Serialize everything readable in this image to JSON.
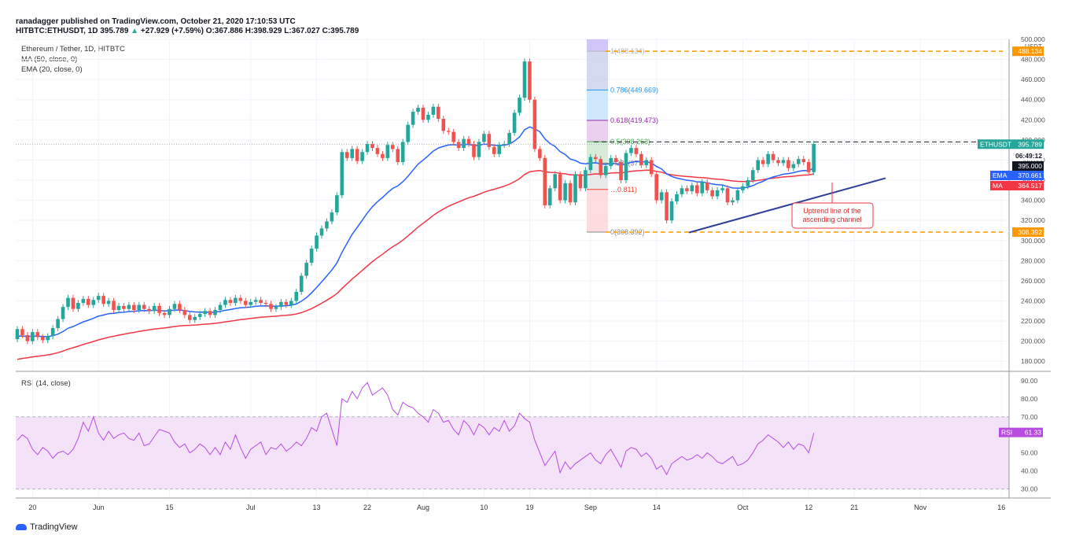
{
  "header": {
    "author_line": "ranadagger published on TradingView.com, October 21, 2020 17:10:53 UTC",
    "symbol": "HITBTC:ETHUSDT, 1D",
    "last": "395.789",
    "change": "+27.929 (+7.59%)",
    "O": "O:367.886",
    "H": "H:398.929",
    "L": "L:367.027",
    "C": "C:395.789"
  },
  "legend": {
    "title": "Ethereum / Tether, 1D, HITBTC",
    "ma": "MA (50, close, 0)",
    "ema": "EMA (20, close, 0)",
    "rsi": "RSI (14, close)"
  },
  "watermark": "TradingView",
  "colors": {
    "up": "#26a69a",
    "down": "#ef5350",
    "ema": "#2962ff",
    "ma": "#f23645",
    "rsi_line": "#b84ce0",
    "rsi_band": "#f3e2f8",
    "trend": "#2e3f9a",
    "dash_orange": "#ff9800"
  },
  "chart_data": {
    "type": "candlestick",
    "price_axis": {
      "unit": "USDT",
      "ylim": [
        170,
        500
      ],
      "ticks": [
        "180.000",
        "200.000",
        "220.000",
        "240.000",
        "260.000",
        "280.000",
        "300.000",
        "320.000",
        "340.000",
        "360.000",
        "380.000",
        "400.000",
        "420.000",
        "440.000",
        "460.000",
        "480.000",
        "500.000"
      ]
    },
    "x_ticks": [
      "20",
      "Jun",
      "15",
      "Jul",
      "13",
      "22",
      "Aug",
      "10",
      "19",
      "Sep",
      "14",
      "Oct",
      "12",
      "21",
      "Nov",
      "16"
    ],
    "fib": [
      {
        "label": "1(488.134)",
        "value": 488.134
      },
      {
        "label": "0.786(449.669)",
        "value": 449.669
      },
      {
        "label": "0.618(419.473)",
        "value": 419.473
      },
      {
        "label": "0.5(398.263)",
        "value": 398.263
      },
      {
        "label": "0.382(377…",
        "value": 377.0
      },
      {
        "label": "…0.811)",
        "value": 350.8
      },
      {
        "label": "0(308.392)",
        "value": 308.392
      }
    ],
    "price_labels": [
      {
        "label": "488.134",
        "value": 488.134
      },
      {
        "label": "ETHUSDT",
        "value": 395.789,
        "text": "395.789"
      },
      {
        "label": "06:49:12",
        "value": 385
      },
      {
        "label": "395.000",
        "value": 395.0
      },
      {
        "label": "EMA",
        "value": 370.661,
        "text": "370.661"
      },
      {
        "label": "MA",
        "value": 364.517,
        "text": "364.517"
      },
      {
        "label": "308.392",
        "value": 308.392
      }
    ],
    "annotation": "Uptrend line of the ascending channel",
    "candles": [
      [
        202,
        212
      ],
      [
        212,
        206
      ],
      [
        206,
        200
      ],
      [
        200,
        209
      ],
      [
        209,
        204
      ],
      [
        204,
        201
      ],
      [
        201,
        205
      ],
      [
        205,
        213
      ],
      [
        213,
        222
      ],
      [
        222,
        234
      ],
      [
        234,
        243
      ],
      [
        243,
        232
      ],
      [
        232,
        238
      ],
      [
        238,
        242
      ],
      [
        242,
        236
      ],
      [
        236,
        241
      ],
      [
        241,
        245
      ],
      [
        245,
        237
      ],
      [
        237,
        240
      ],
      [
        240,
        231
      ],
      [
        231,
        235
      ],
      [
        235,
        232
      ],
      [
        232,
        236
      ],
      [
        236,
        231
      ],
      [
        231,
        236
      ],
      [
        236,
        232
      ],
      [
        232,
        230
      ],
      [
        230,
        235
      ],
      [
        235,
        228
      ],
      [
        228,
        226
      ],
      [
        226,
        232
      ],
      [
        232,
        237
      ],
      [
        237,
        231
      ],
      [
        231,
        226
      ],
      [
        226,
        221
      ],
      [
        221,
        224
      ],
      [
        224,
        227
      ],
      [
        227,
        230
      ],
      [
        230,
        226
      ],
      [
        226,
        231
      ],
      [
        231,
        236
      ],
      [
        236,
        241
      ],
      [
        241,
        238
      ],
      [
        238,
        243
      ],
      [
        243,
        240
      ],
      [
        240,
        236
      ],
      [
        236,
        239
      ],
      [
        239,
        241
      ],
      [
        241,
        238
      ],
      [
        238,
        237
      ],
      [
        237,
        232
      ],
      [
        232,
        234
      ],
      [
        234,
        239
      ],
      [
        239,
        236
      ],
      [
        236,
        240
      ],
      [
        240,
        249
      ],
      [
        249,
        265
      ],
      [
        265,
        278
      ],
      [
        278,
        292
      ],
      [
        292,
        305
      ],
      [
        305,
        312
      ],
      [
        312,
        319
      ],
      [
        319,
        328
      ],
      [
        328,
        345
      ],
      [
        345,
        388
      ],
      [
        388,
        382
      ],
      [
        382,
        391
      ],
      [
        391,
        379
      ],
      [
        379,
        388
      ],
      [
        388,
        396
      ],
      [
        396,
        392
      ],
      [
        392,
        386
      ],
      [
        386,
        382
      ],
      [
        382,
        395
      ],
      [
        395,
        391
      ],
      [
        391,
        378
      ],
      [
        378,
        398
      ],
      [
        398,
        415
      ],
      [
        415,
        428
      ],
      [
        428,
        432
      ],
      [
        432,
        420
      ],
      [
        420,
        425
      ],
      [
        425,
        433
      ],
      [
        433,
        421
      ],
      [
        421,
        409
      ],
      [
        409,
        408
      ],
      [
        408,
        398
      ],
      [
        398,
        392
      ],
      [
        392,
        401
      ],
      [
        401,
        396
      ],
      [
        396,
        383
      ],
      [
        383,
        398
      ],
      [
        398,
        406
      ],
      [
        406,
        393
      ],
      [
        393,
        386
      ],
      [
        386,
        395
      ],
      [
        395,
        396
      ],
      [
        396,
        407
      ],
      [
        407,
        427
      ],
      [
        427,
        442
      ],
      [
        442,
        478
      ],
      [
        478,
        440
      ],
      [
        440,
        391
      ],
      [
        391,
        382
      ],
      [
        382,
        335
      ],
      [
        335,
        352
      ],
      [
        352,
        366
      ],
      [
        366,
        340
      ],
      [
        340,
        357
      ],
      [
        357,
        338
      ],
      [
        338,
        366
      ],
      [
        366,
        352
      ],
      [
        352,
        370
      ],
      [
        370,
        383
      ],
      [
        383,
        381
      ],
      [
        381,
        365
      ],
      [
        365,
        374
      ],
      [
        374,
        382
      ],
      [
        382,
        378
      ],
      [
        378,
        360
      ],
      [
        360,
        387
      ],
      [
        387,
        392
      ],
      [
        392,
        386
      ],
      [
        386,
        375
      ],
      [
        375,
        380
      ],
      [
        380,
        366
      ],
      [
        366,
        340
      ],
      [
        340,
        348
      ],
      [
        348,
        320
      ],
      [
        320,
        339
      ],
      [
        339,
        346
      ],
      [
        346,
        352
      ],
      [
        352,
        349
      ],
      [
        349,
        355
      ],
      [
        355,
        347
      ],
      [
        347,
        358
      ],
      [
        358,
        350
      ],
      [
        350,
        344
      ],
      [
        344,
        350
      ],
      [
        350,
        352
      ],
      [
        352,
        338
      ],
      [
        338,
        340
      ],
      [
        340,
        350
      ],
      [
        350,
        354
      ],
      [
        354,
        360
      ],
      [
        360,
        370
      ],
      [
        370,
        380
      ],
      [
        380,
        376
      ],
      [
        376,
        386
      ],
      [
        386,
        380
      ],
      [
        380,
        377
      ],
      [
        377,
        380
      ],
      [
        380,
        372
      ],
      [
        372,
        376
      ],
      [
        376,
        381
      ],
      [
        381,
        378
      ],
      [
        378,
        368
      ],
      [
        368,
        396
      ]
    ],
    "rsi": {
      "ylim": [
        25,
        93
      ],
      "ticks": [
        "30.00",
        "40.00",
        "50.00",
        "60.00",
        "70.00",
        "80.00",
        "90.00"
      ],
      "band": [
        30,
        70
      ],
      "last_label": "RSI",
      "last_value": "61.33",
      "values": [
        57,
        60,
        58,
        52,
        49,
        53,
        51,
        47,
        50,
        51,
        49,
        52,
        58,
        67,
        62,
        70,
        61,
        57,
        62,
        58,
        60,
        61,
        58,
        57,
        61,
        54,
        55,
        59,
        63,
        62,
        61,
        56,
        53,
        55,
        50,
        52,
        55,
        53,
        49,
        53,
        49,
        56,
        52,
        60,
        53,
        47,
        52,
        54,
        56,
        49,
        53,
        52,
        55,
        51,
        53,
        56,
        54,
        58,
        64,
        62,
        70,
        72,
        63,
        54,
        80,
        78,
        84,
        80,
        86,
        89,
        82,
        84,
        86,
        82,
        74,
        71,
        78,
        76,
        75,
        72,
        70,
        67,
        74,
        72,
        67,
        68,
        63,
        60,
        68,
        65,
        60,
        66,
        64,
        60,
        64,
        62,
        68,
        62,
        65,
        72,
        69,
        67,
        57,
        50,
        43,
        47,
        51,
        39,
        45,
        41,
        44,
        46,
        48,
        50,
        46,
        44,
        49,
        52,
        47,
        42,
        51,
        53,
        52,
        48,
        50,
        47,
        41,
        43,
        38,
        44,
        46,
        48,
        46,
        47,
        49,
        47,
        50,
        48,
        45,
        44,
        46,
        48,
        43,
        44,
        46,
        50,
        55,
        57,
        60,
        58,
        56,
        53,
        56,
        52,
        55,
        54,
        50,
        61
      ]
    }
  }
}
